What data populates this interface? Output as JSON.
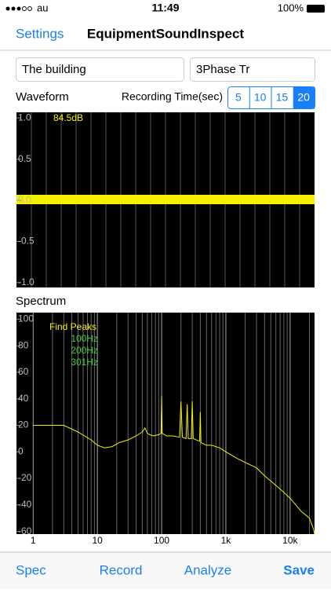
{
  "status_bar": {
    "carrier": "au",
    "time": "11:49",
    "battery": "100%"
  },
  "nav_bar": {
    "left_button": "Settings",
    "title": "EquipmentSoundInspect"
  },
  "fields": [
    "The building",
    "3Phase Tr"
  ],
  "waveform": {
    "title": "Waveform",
    "level": "84.5dB",
    "ylim": [
      -1.05,
      1.05
    ],
    "yticks": [
      {
        "value": 1,
        "label": "1.0"
      },
      0.5,
      {
        "value": 0,
        "label": "0.0"
      },
      -0.5,
      {
        "value": -1,
        "label": "-1.0"
      }
    ]
  },
  "recording_time": {
    "label": "Recording Time(sec)",
    "options": [
      "5",
      "10",
      "15",
      "20"
    ],
    "selected": 3
  },
  "spectrum": {
    "title": "Spectrum",
    "type": "line",
    "log_x": true,
    "color": "#f5f000",
    "annotations": {
      "heading": "Find Peaks",
      "peaks": [
        "100Hz",
        "200Hz",
        "301Hz"
      ]
    },
    "xlim": [
      0.55,
      24000
    ],
    "ylim": [
      -62,
      105
    ],
    "xticks": [
      1,
      10,
      100,
      {
        "value": 1000,
        "label": "1k"
      },
      {
        "value": 10000,
        "label": "10k"
      }
    ],
    "yticks": [
      100,
      80,
      60,
      40,
      20,
      0,
      -20,
      -40,
      -60
    ],
    "x": [
      1,
      3,
      5,
      8,
      10,
      13,
      17,
      22,
      30,
      40,
      50,
      55,
      60,
      65,
      75,
      90,
      98,
      100,
      102,
      120,
      150,
      190,
      200,
      210,
      240,
      250,
      260,
      290,
      300,
      310,
      390,
      400,
      410,
      500,
      600,
      800,
      1000,
      1500,
      2000,
      3000,
      4000,
      5000,
      7000,
      10000,
      15000,
      20000,
      23000,
      24000
    ],
    "values": [
      20,
      20,
      15,
      9,
      5,
      3,
      4,
      7,
      9,
      12,
      15,
      18,
      14,
      13,
      12,
      13,
      14,
      42,
      14,
      12,
      12,
      11,
      38,
      11,
      10,
      36,
      10,
      10,
      38,
      10,
      8,
      30,
      7,
      5,
      5,
      3,
      0,
      -5,
      -8,
      -12,
      -18,
      -22,
      -28,
      -35,
      -45,
      -50,
      -58,
      -62
    ]
  },
  "toolbar": {
    "spec": "Spec",
    "record": "Record",
    "analyze": "Analyze",
    "save": "Save"
  }
}
